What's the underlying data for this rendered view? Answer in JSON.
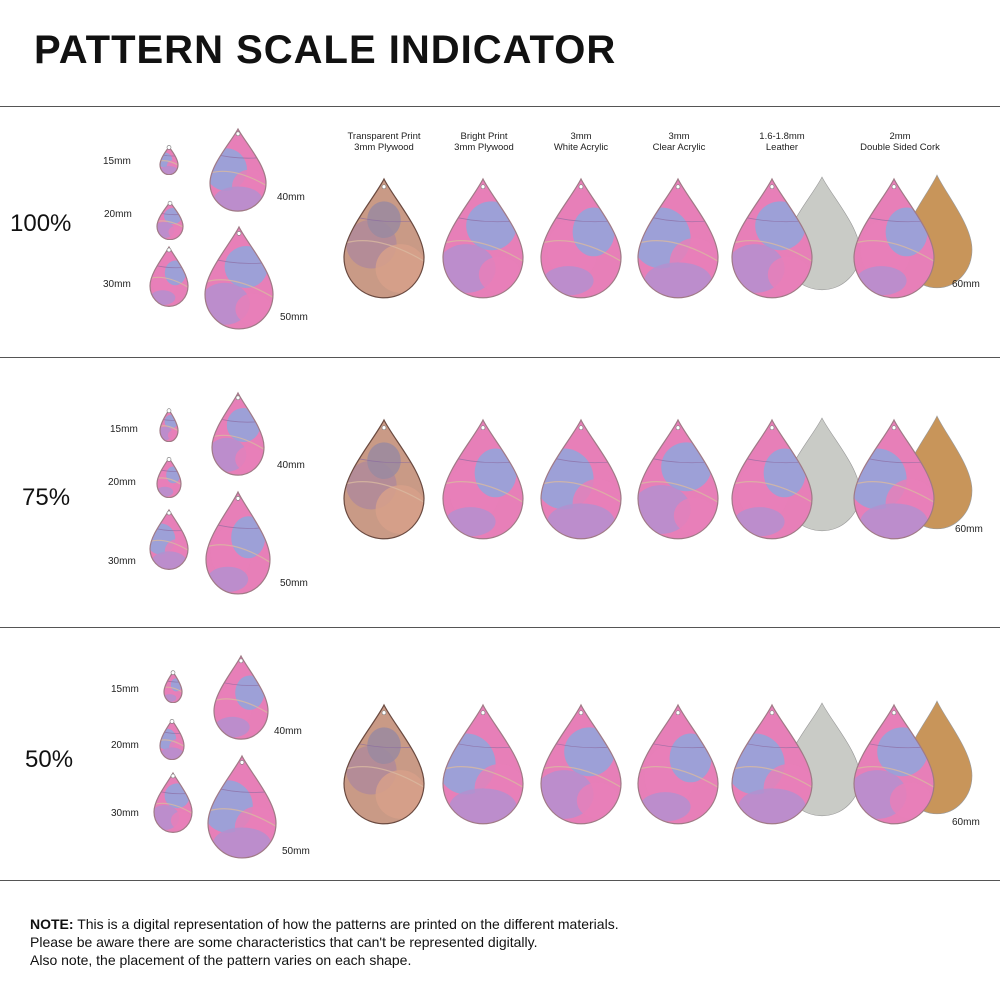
{
  "title": "PATTERN SCALE INDICATOR",
  "size_labels": [
    "15mm",
    "20mm",
    "30mm",
    "40mm",
    "50mm"
  ],
  "large_size_label": "60mm",
  "materials": [
    {
      "line1": "Transparent Print",
      "line2": "3mm Plywood"
    },
    {
      "line1": "Bright Print",
      "line2": "3mm Plywood"
    },
    {
      "line1": "3mm",
      "line2": "White Acrylic"
    },
    {
      "line1": "3mm",
      "line2": "Clear Acrylic"
    },
    {
      "line1": "1.6-1.8mm",
      "line2": "Leather"
    },
    {
      "line1": "2mm",
      "line2": "Double Sided Cork"
    }
  ],
  "sections": [
    {
      "scale": "100%"
    },
    {
      "scale": "75%"
    },
    {
      "scale": "50%"
    }
  ],
  "note": {
    "bold": "NOTE:",
    "line1": " This is a digital representation of how the patterns are printed on the different materials.",
    "line2": "Please be aware there are some characteristics that can't be represented digitally.",
    "line3": "Also note, the placement of the pattern varies on each shape."
  },
  "colors": {
    "pink": "#e77fb8",
    "blue": "#8fa6dc",
    "lavender": "#b48fcf",
    "wood": "#c99a86",
    "leather_back": "#c9cbc6",
    "cork": "#c8955a"
  }
}
